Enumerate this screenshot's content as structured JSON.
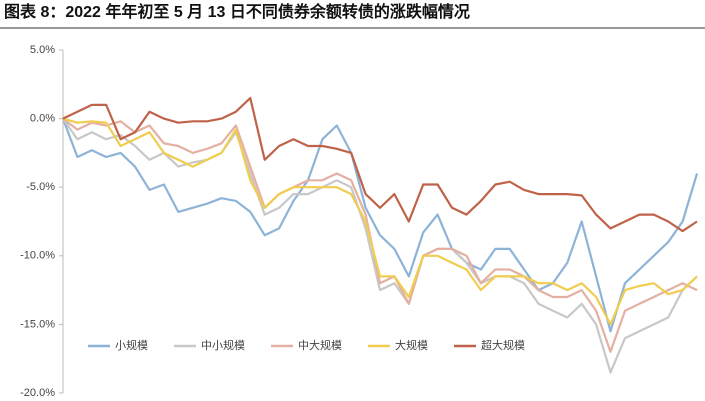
{
  "chart_data": {
    "type": "line",
    "title": "图表 8：2022 年年初至 5 月 13 日不同债券余额转债的涨跌幅情况",
    "ylim": [
      -20,
      5
    ],
    "yticks": [
      {
        "value": 5,
        "label": "5.0%"
      },
      {
        "value": 0,
        "label": "0.0%"
      },
      {
        "value": -5,
        "label": "-5.0%"
      },
      {
        "value": -10,
        "label": "-10.0%"
      },
      {
        "value": -15,
        "label": "-15.0%"
      },
      {
        "value": -20,
        "label": "-20.0%"
      }
    ],
    "grid": false,
    "legend": "lower left",
    "series": [
      {
        "name": "小规模",
        "color": "#8db4d8",
        "values": [
          0,
          -2.8,
          -2.3,
          -2.8,
          -2.5,
          -3.5,
          -5.2,
          -4.8,
          -6.8,
          -6.5,
          -6.2,
          -5.8,
          -6.0,
          -6.8,
          -8.5,
          -8.0,
          -6.0,
          -4.5,
          -1.5,
          -0.5,
          -2.5,
          -6.5,
          -8.5,
          -9.5,
          -11.5,
          -8.3,
          -7.0,
          -9.5,
          -10.5,
          -11.0,
          -9.5,
          -9.5,
          -11.0,
          -12.5,
          -12.0,
          -10.5,
          -7.5,
          -11.5,
          -15.5,
          -12.0,
          -11.0,
          -10.0,
          -9.0,
          -7.5,
          -4.0
        ]
      },
      {
        "name": "中小规模",
        "color": "#c8c8c8",
        "values": [
          0,
          -1.5,
          -1.0,
          -1.5,
          -1.2,
          -2.0,
          -3.0,
          -2.5,
          -3.5,
          -3.2,
          -3.0,
          -2.5,
          -1.0,
          -4.0,
          -7.0,
          -6.5,
          -5.5,
          -5.5,
          -5.0,
          -4.5,
          -5.0,
          -8.0,
          -12.5,
          -12.0,
          -13.5,
          -10.0,
          -9.5,
          -9.5,
          -10.5,
          -12.0,
          -11.5,
          -11.5,
          -12.0,
          -13.5,
          -14.0,
          -14.5,
          -13.5,
          -15.0,
          -18.5,
          -16.0,
          -15.5,
          -15.0,
          -14.5,
          -12.5,
          -11.5
        ]
      },
      {
        "name": "中大规模",
        "color": "#e4b0a2",
        "values": [
          0,
          -0.8,
          -0.3,
          -0.5,
          -0.2,
          -1.0,
          -0.5,
          -1.8,
          -2.0,
          -2.5,
          -2.2,
          -1.8,
          -0.5,
          -3.5,
          -6.5,
          -5.5,
          -5.0,
          -4.5,
          -4.5,
          -4.0,
          -4.5,
          -7.0,
          -12.0,
          -11.5,
          -13.5,
          -10.0,
          -9.5,
          -9.5,
          -10.0,
          -12.0,
          -11.0,
          -11.0,
          -11.5,
          -12.5,
          -13.0,
          -13.0,
          -12.5,
          -14.0,
          -17.0,
          -14.0,
          -13.5,
          -13.0,
          -12.5,
          -12.0,
          -12.5
        ]
      },
      {
        "name": "大规模",
        "color": "#f0cd4f",
        "values": [
          0,
          -0.3,
          -0.2,
          -0.3,
          -2.0,
          -1.5,
          -1.0,
          -2.5,
          -3.0,
          -3.5,
          -3.0,
          -2.5,
          -0.8,
          -4.5,
          -6.5,
          -5.5,
          -5.0,
          -5.0,
          -5.0,
          -5.0,
          -5.5,
          -7.5,
          -11.5,
          -11.5,
          -13.0,
          -10.0,
          -10.0,
          -10.5,
          -11.0,
          -12.5,
          -11.5,
          -11.5,
          -11.5,
          -12.0,
          -12.0,
          -12.5,
          -12.0,
          -13.0,
          -15.0,
          -12.5,
          -12.2,
          -12.0,
          -12.8,
          -12.5,
          -11.5
        ]
      },
      {
        "name": "超大规模",
        "color": "#c0624a",
        "values": [
          0,
          0.5,
          1.0,
          1.0,
          -1.5,
          -1.0,
          0.5,
          0,
          -0.3,
          -0.2,
          -0.2,
          0,
          0.5,
          1.5,
          -3.0,
          -2.0,
          -1.5,
          -2.0,
          -2.0,
          -2.2,
          -2.5,
          -5.5,
          -6.5,
          -5.5,
          -7.5,
          -4.8,
          -4.8,
          -6.5,
          -7.0,
          -6.0,
          -4.8,
          -4.6,
          -5.2,
          -5.5,
          -5.5,
          -5.5,
          -5.6,
          -7.0,
          -8.0,
          -7.5,
          -7.0,
          -7.0,
          -7.5,
          -8.2,
          -7.5
        ]
      }
    ]
  }
}
